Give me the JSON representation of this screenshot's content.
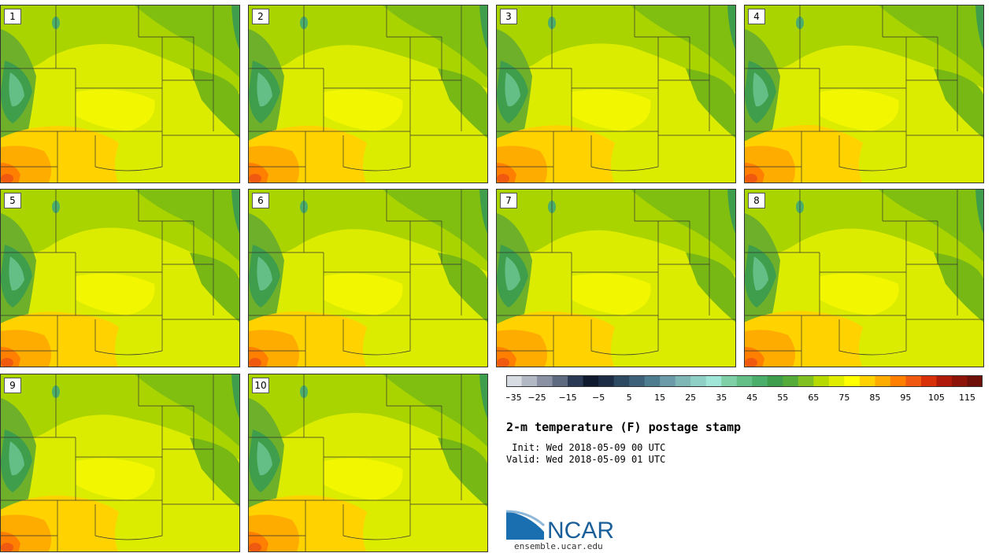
{
  "panels": [
    {
      "label": "1"
    },
    {
      "label": "2"
    },
    {
      "label": "3"
    },
    {
      "label": "4"
    },
    {
      "label": "5"
    },
    {
      "label": "6"
    },
    {
      "label": "7"
    },
    {
      "label": "8"
    },
    {
      "label": "9"
    },
    {
      "label": "10"
    }
  ],
  "colorbar": {
    "colors": [
      "#d6dce2",
      "#b3b9c4",
      "#8a91a3",
      "#5e6a80",
      "#2b3a54",
      "#0f1a2e",
      "#1c2c44",
      "#2e4a62",
      "#3d6178",
      "#4f7d90",
      "#6b9aa8",
      "#7fb7b7",
      "#8fd0c6",
      "#9fe6d8",
      "#7fd0a6",
      "#63bf86",
      "#4bae6a",
      "#3e9e4c",
      "#55ab3a",
      "#80c020",
      "#b6d900",
      "#e0ed00",
      "#ffff00",
      "#ffd200",
      "#ffac00",
      "#ff7f00",
      "#f05a10",
      "#d83008",
      "#b01a08",
      "#8c1408",
      "#6e1008"
    ],
    "ticks": [
      "−35",
      "−25",
      "−15",
      "−5",
      "5",
      "15",
      "25",
      "35",
      "45",
      "55",
      "65",
      "75",
      "85",
      "95",
      "105",
      "115"
    ]
  },
  "title": "2-m temperature (F) postage stamp",
  "init_line": " Init: Wed 2018-05-09 00 UTC",
  "valid_line": "Valid: Wed 2018-05-09 01 UTC",
  "logo": {
    "text": "NCAR",
    "url": "ensemble.ucar.edu"
  }
}
